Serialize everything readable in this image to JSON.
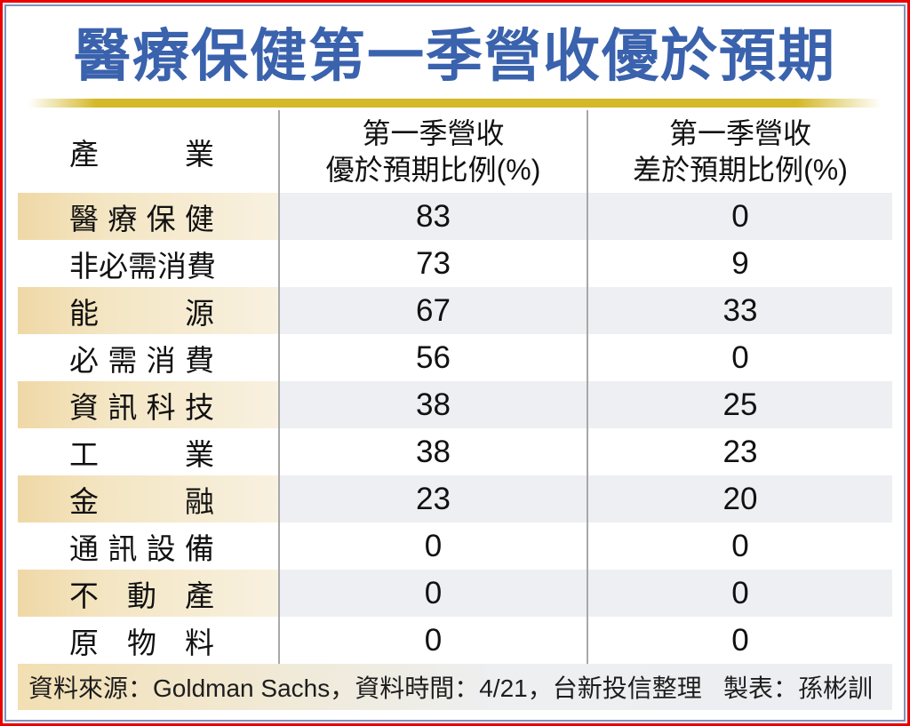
{
  "title": "醫療保健第一季營收優於預期",
  "table": {
    "header": {
      "industry": "產業",
      "better_line1": "第一季營收",
      "better_line2": "優於預期比例(%)",
      "worse_line1": "第一季營收",
      "worse_line2": "差於預期比例(%)"
    },
    "rows": [
      {
        "industry": "醫療保健",
        "better": "83",
        "worse": "0"
      },
      {
        "industry": "非必需消費",
        "better": "73",
        "worse": "9"
      },
      {
        "industry": "能源",
        "better": "67",
        "worse": "33"
      },
      {
        "industry": "必需消費",
        "better": "56",
        "worse": "0"
      },
      {
        "industry": "資訊科技",
        "better": "38",
        "worse": "25"
      },
      {
        "industry": "工業",
        "better": "38",
        "worse": "23"
      },
      {
        "industry": "金融",
        "better": "23",
        "worse": "20"
      },
      {
        "industry": "通訊設備",
        "better": "0",
        "worse": "0"
      },
      {
        "industry": "不動產",
        "better": "0",
        "worse": "0"
      },
      {
        "industry": "原物料",
        "better": "0",
        "worse": "0"
      }
    ]
  },
  "footer": {
    "source": "資料來源：Goldman Sachs，資料時間：4/21，台新投信整理",
    "credit": "製表：孫彬訓"
  },
  "colors": {
    "title_blue": "#3a62ad",
    "gold_bar": "#d4b827",
    "border_red": "#ea0000",
    "frame_blue": "#7e93bd",
    "shade_beige": "#efd8a6",
    "shade_gray": "#edeff2",
    "divider_gray": "#a8a8a8"
  },
  "chart_data": {
    "type": "table",
    "title": "醫療保健第一季營收優於預期",
    "columns": [
      "產業",
      "第一季營收優於預期比例(%)",
      "第一季營收差於預期比例(%)"
    ],
    "rows": [
      [
        "醫療保健",
        83,
        0
      ],
      [
        "非必需消費",
        73,
        9
      ],
      [
        "能源",
        67,
        33
      ],
      [
        "必需消費",
        56,
        0
      ],
      [
        "資訊科技",
        38,
        25
      ],
      [
        "工業",
        38,
        23
      ],
      [
        "金融",
        23,
        20
      ],
      [
        "通訊設備",
        0,
        0
      ],
      [
        "不動產",
        0,
        0
      ],
      [
        "原物料",
        0,
        0
      ]
    ],
    "source": "Goldman Sachs",
    "data_date": "4/21",
    "compiled_by": "台新投信整理",
    "table_by": "孫彬訓",
    "legend_position": "none",
    "grid": "alternating-row-shading"
  }
}
